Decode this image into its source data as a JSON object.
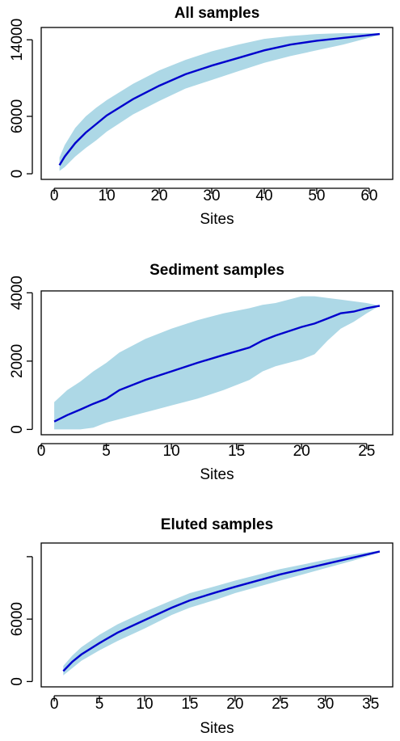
{
  "colors": {
    "band": "#add8e6",
    "line": "#0000cd",
    "axis": "#000000"
  },
  "chart_data": [
    {
      "type": "area",
      "title": "All samples",
      "xlabel": "Sites",
      "ylabel": "",
      "xlim": [
        0,
        62
      ],
      "ylim": [
        0,
        14700
      ],
      "xticks": [
        0,
        10,
        20,
        30,
        40,
        50,
        60
      ],
      "xtick_labels": [
        "0",
        "10",
        "20",
        "30",
        "40",
        "50",
        "60"
      ],
      "yticks": [
        0,
        6000,
        14000
      ],
      "ytick_labels": [
        "0",
        "6000",
        "14000"
      ],
      "x": [
        1,
        2,
        4,
        6,
        8,
        10,
        15,
        20,
        25,
        30,
        35,
        40,
        45,
        50,
        55,
        62
      ],
      "series": [
        {
          "role": "mean",
          "values": [
            900,
            1800,
            3200,
            4300,
            5200,
            6100,
            7800,
            9200,
            10400,
            11300,
            12100,
            12900,
            13500,
            13900,
            14200,
            14600
          ]
        },
        {
          "role": "upper",
          "values": [
            1700,
            3000,
            4800,
            6000,
            6900,
            7700,
            9400,
            10800,
            11900,
            12800,
            13500,
            14100,
            14400,
            14600,
            14700,
            14700
          ]
        },
        {
          "role": "lower",
          "values": [
            300,
            700,
            1800,
            2700,
            3500,
            4400,
            6200,
            7600,
            8900,
            9800,
            10700,
            11600,
            12300,
            12900,
            13500,
            14500
          ]
        }
      ]
    },
    {
      "type": "area",
      "title": "Sediment samples",
      "xlabel": "Sites",
      "ylabel": "",
      "xlim": [
        1,
        26
      ],
      "ylim": [
        0,
        3900
      ],
      "xticks": [
        0,
        5,
        10,
        15,
        20,
        25
      ],
      "xtick_labels": [
        "0",
        "5",
        "10",
        "15",
        "20",
        "25"
      ],
      "yticks": [
        0,
        2000,
        4000
      ],
      "ytick_labels": [
        "0",
        "2000",
        "4000"
      ],
      "x": [
        1,
        2,
        3,
        4,
        5,
        6,
        8,
        10,
        12,
        14,
        16,
        17,
        18,
        20,
        21,
        22,
        23,
        24,
        25,
        26
      ],
      "series": [
        {
          "role": "mean",
          "values": [
            230,
            420,
            580,
            750,
            900,
            1150,
            1450,
            1700,
            1950,
            2180,
            2400,
            2600,
            2750,
            3000,
            3100,
            3250,
            3400,
            3450,
            3550,
            3620
          ]
        },
        {
          "role": "upper",
          "values": [
            800,
            1150,
            1400,
            1700,
            1950,
            2250,
            2650,
            2950,
            3200,
            3400,
            3550,
            3650,
            3700,
            3900,
            3900,
            3850,
            3800,
            3750,
            3700,
            3620
          ]
        },
        {
          "role": "lower",
          "values": [
            0,
            0,
            0,
            50,
            200,
            300,
            500,
            700,
            900,
            1150,
            1450,
            1700,
            1850,
            2050,
            2200,
            2600,
            2950,
            3150,
            3400,
            3620
          ]
        }
      ]
    },
    {
      "type": "area",
      "title": "Eluted samples",
      "xlabel": "Sites",
      "ylabel": "",
      "xlim": [
        0,
        36
      ],
      "ylim": [
        0,
        12800
      ],
      "xticks": [
        0,
        5,
        10,
        15,
        20,
        25,
        30,
        35
      ],
      "xtick_labels": [
        "0",
        "5",
        "10",
        "15",
        "20",
        "25",
        "30",
        "35"
      ],
      "yticks": [
        0,
        6000,
        12000
      ],
      "ytick_labels": [
        "0",
        "6000",
        ""
      ],
      "x": [
        1,
        2,
        3,
        5,
        7,
        10,
        13,
        15,
        18,
        20,
        25,
        30,
        33,
        36
      ],
      "series": [
        {
          "role": "mean",
          "values": [
            1000,
            1900,
            2600,
            3700,
            4700,
            5900,
            7100,
            7800,
            8600,
            9100,
            10300,
            11300,
            11900,
            12500
          ]
        },
        {
          "role": "upper",
          "values": [
            1500,
            2500,
            3300,
            4500,
            5500,
            6700,
            7800,
            8500,
            9200,
            9700,
            10800,
            11700,
            12200,
            12600
          ]
        },
        {
          "role": "lower",
          "values": [
            600,
            1300,
            2000,
            3000,
            3900,
            5100,
            6400,
            7100,
            7900,
            8500,
            9700,
            10900,
            11600,
            12400
          ]
        }
      ]
    }
  ]
}
